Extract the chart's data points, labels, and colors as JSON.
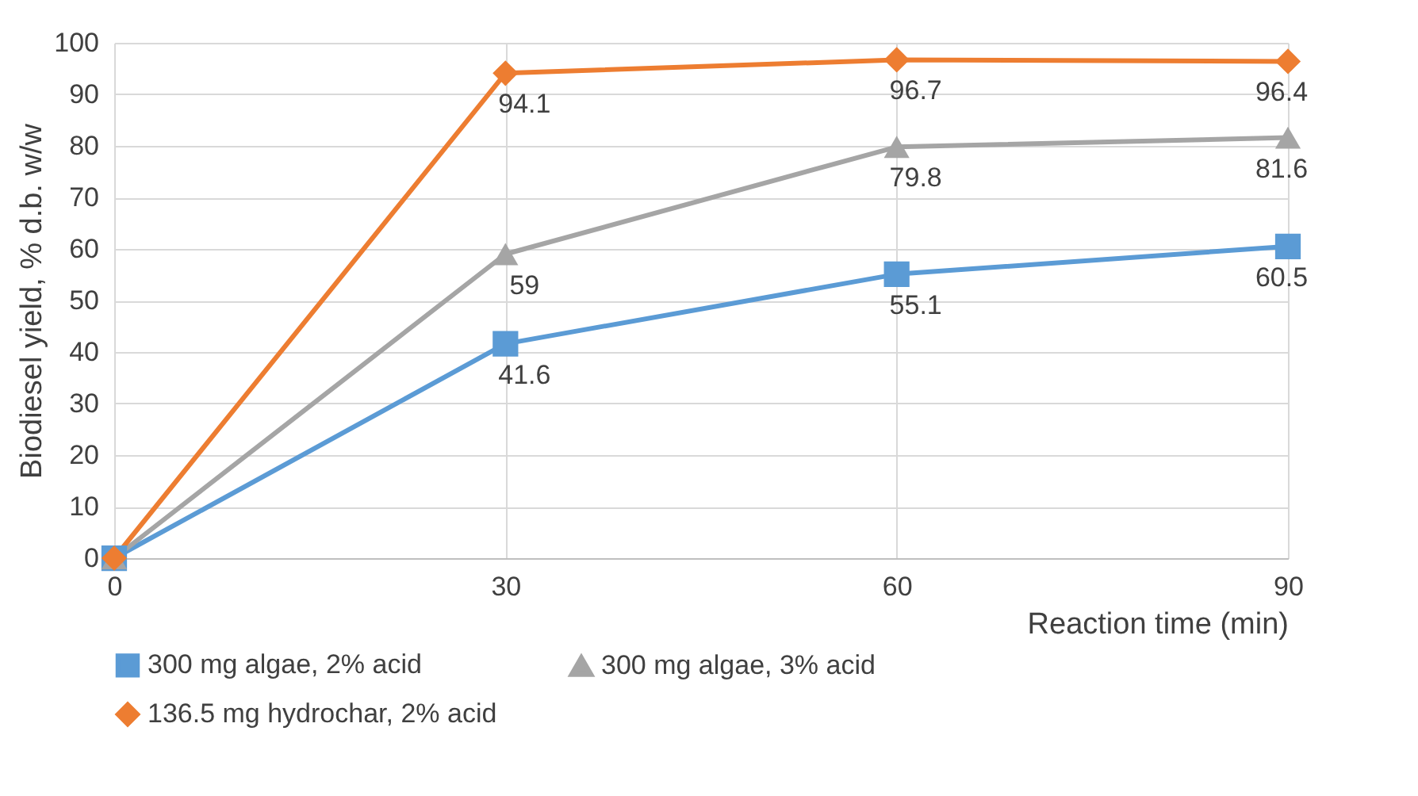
{
  "chart_data": {
    "type": "line",
    "xlabel": "Reaction time (min)",
    "ylabel": "Biodiesel yield, % d.b. w/w",
    "x": [
      0,
      30,
      60,
      90
    ],
    "xlim": [
      0,
      90
    ],
    "xticks": [
      0,
      30,
      60,
      90
    ],
    "ylim": [
      0,
      100
    ],
    "yticks": [
      0,
      10,
      20,
      30,
      40,
      50,
      60,
      70,
      80,
      90,
      100
    ],
    "grid": true,
    "legend": "bottom",
    "line_style": "solid",
    "series": [
      {
        "name": "300 mg algae, 2% acid",
        "color": "#5b9bd5",
        "marker": "square",
        "values": [
          0,
          41.6,
          55.1,
          60.5
        ],
        "value_labels": [
          null,
          "41.6",
          "55.1",
          "60.5"
        ]
      },
      {
        "name": "300 mg algae, 3% acid",
        "color": "#a5a5a5",
        "marker": "triangle",
        "values": [
          0,
          59,
          79.8,
          81.6
        ],
        "value_labels": [
          null,
          "59",
          "79.8",
          "81.6"
        ]
      },
      {
        "name": "136.5 mg hydrochar, 2% acid",
        "color": "#ed7d31",
        "marker": "diamond",
        "values": [
          0,
          94.1,
          96.7,
          96.4
        ],
        "value_labels": [
          null,
          "94.1",
          "96.7",
          "96.4"
        ]
      }
    ]
  }
}
